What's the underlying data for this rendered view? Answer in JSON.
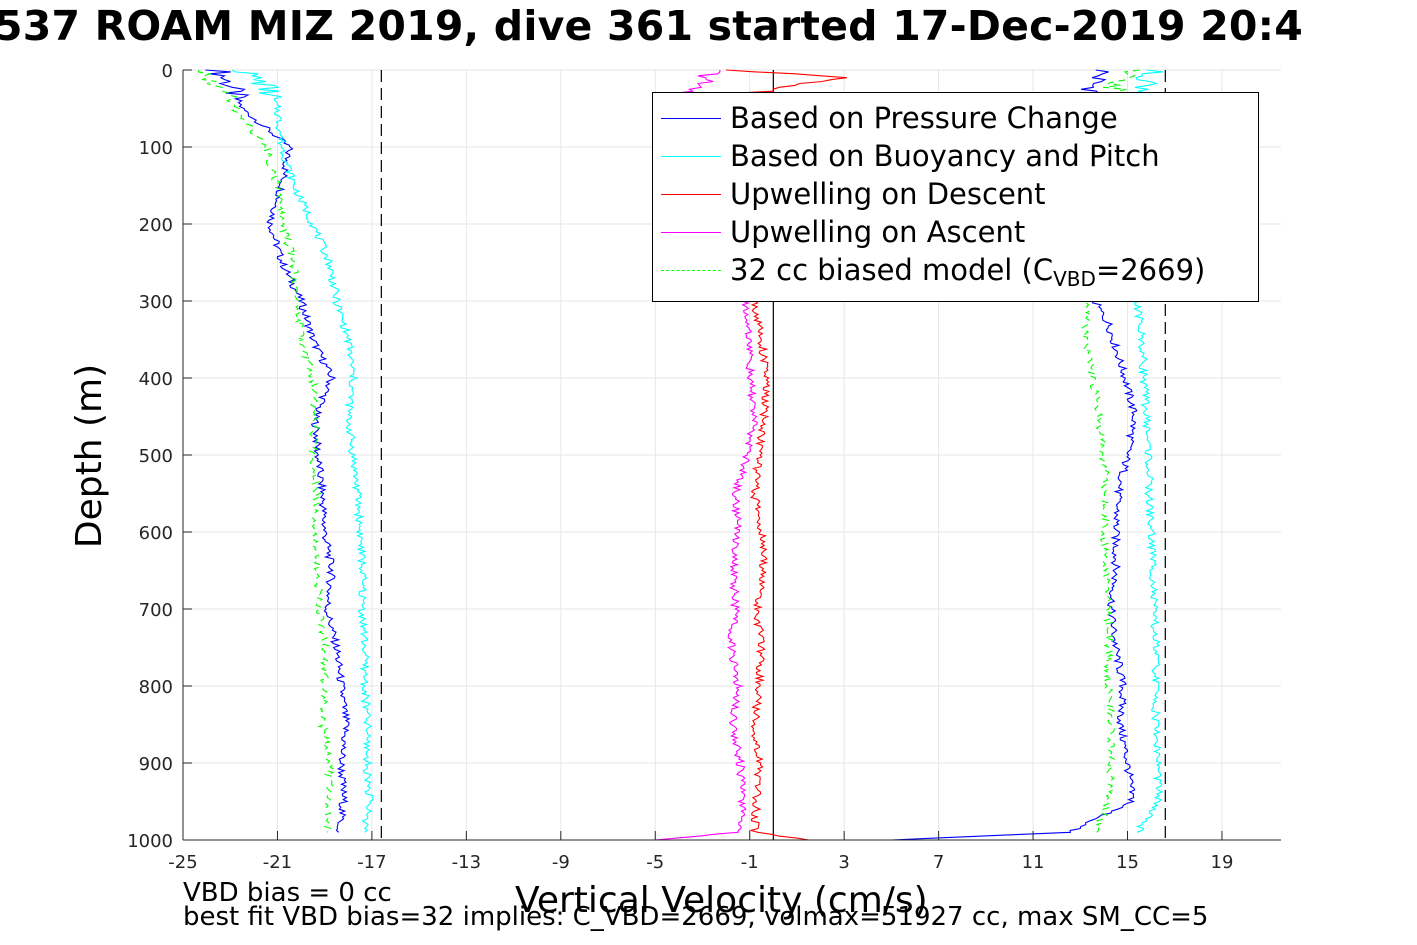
{
  "title": "537 ROAM MIZ 2019, dive 361 started 17-Dec-2019 20:4",
  "notes": {
    "vbd_bias": "VBD bias = 0 cc",
    "best_fit": "best fit VBD bias=32 implies: C_VBD=2669, volmax=51927 cc, max SM_CC=5"
  },
  "chart_data": {
    "type": "line",
    "title": "537 ROAM MIZ 2019, dive 361 started 17-Dec-2019 20:4",
    "xlabel": "Vertical Velocity (cm/s)",
    "ylabel": "Depth (m)",
    "xlim": [
      -25,
      21.5
    ],
    "ylim": [
      0,
      1000
    ],
    "y_reversed": true,
    "grid": true,
    "legend_position": "top-right",
    "x_ticks": [
      "-25",
      "-21",
      "-17",
      "-13",
      "-9",
      "-5",
      "-1",
      "3",
      "7",
      "11",
      "15",
      "19"
    ],
    "x_tick_values": [
      -25,
      -21,
      -17,
      -13,
      -9,
      -5,
      -1,
      3,
      7,
      11,
      15,
      19
    ],
    "y_ticks": [
      "0",
      "100",
      "200",
      "300",
      "400",
      "500",
      "600",
      "700",
      "800",
      "900",
      "1000"
    ],
    "y_tick_values": [
      0,
      100,
      200,
      300,
      400,
      500,
      600,
      700,
      800,
      900,
      1000
    ],
    "reference_lines": [
      {
        "x": -16.6,
        "style": "dashed",
        "color": "#000000"
      },
      {
        "x": 16.6,
        "style": "dashed",
        "color": "#000000"
      },
      {
        "x": 0,
        "style": "solid",
        "color": "#000000"
      }
    ],
    "series": [
      {
        "name": "Based on Pressure Change",
        "color": "#0000ff",
        "dash": "",
        "segments": [
          {
            "depth": [
              0,
              20,
              50,
              100,
              150,
              200,
              250,
              300,
              350,
              400,
              450,
              500,
              550,
              600,
              650,
              700,
              750,
              800,
              850,
              900,
              950,
              990
            ],
            "x": [
              -23.5,
              -23,
              -22.5,
              -20.5,
              -20.8,
              -21.3,
              -20.8,
              -20,
              -19.5,
              -18.7,
              -19.4,
              -19.3,
              -19.1,
              -19,
              -18.7,
              -18.9,
              -18.5,
              -18.3,
              -18.1,
              -18.3,
              -18.2,
              -18.4
            ]
          },
          {
            "depth": [
              0,
              20,
              60,
              120,
              200,
              300,
              330,
              360,
              400,
              450,
              500,
              550,
              600,
              650,
              700,
              750,
              800,
              850,
              900,
              950,
              990,
              1000
            ],
            "x": [
              14,
              13.5,
              14,
              14,
              13.8,
              13.6,
              14.2,
              14.5,
              14.9,
              15.3,
              15,
              14.6,
              14.5,
              14.5,
              14.3,
              14.5,
              14.8,
              14.7,
              15,
              15.2,
              12.5,
              5
            ]
          }
        ]
      },
      {
        "name": "Based on Buoyancy and Pitch",
        "color": "#00ffff",
        "dash": "",
        "segments": [
          {
            "depth": [
              0,
              20,
              50,
              100,
              150,
              200,
              250,
              300,
              350,
              400,
              450,
              500,
              550,
              600,
              650,
              700,
              750,
              800,
              850,
              900,
              950,
              990
            ],
            "x": [
              -22.5,
              -21.5,
              -21,
              -20.8,
              -20.3,
              -19.5,
              -18.8,
              -18.5,
              -18,
              -17.8,
              -18,
              -17.8,
              -17.6,
              -17.5,
              -17.4,
              -17.4,
              -17.3,
              -17.3,
              -17.2,
              -17.2,
              -17.1,
              -17.3
            ]
          },
          {
            "depth": [
              0,
              20,
              60,
              120,
              200,
              300,
              350,
              400,
              450,
              500,
              550,
              600,
              650,
              700,
              750,
              800,
              850,
              900,
              950,
              990
            ],
            "x": [
              16,
              15.8,
              15.5,
              15.4,
              15.3,
              15.4,
              15.6,
              15.7,
              15.8,
              15.9,
              15.9,
              16,
              16.1,
              16.1,
              16.2,
              16.2,
              16.2,
              16.3,
              16.3,
              15.4
            ]
          }
        ]
      },
      {
        "name": "Upwelling on Descent",
        "color": "#ff0000",
        "dash": "",
        "segments": [
          {
            "depth": [
              0,
              10,
              30,
              60,
              100,
              200,
              300,
              350,
              400,
              450,
              500,
              550,
              600,
              650,
              700,
              750,
              800,
              850,
              900,
              950,
              990,
              1000
            ],
            "x": [
              -2,
              3,
              -1,
              -3,
              -2,
              -1.2,
              -0.8,
              -0.5,
              -0.3,
              -0.4,
              -0.6,
              -0.8,
              -0.5,
              -0.4,
              -0.7,
              -0.5,
              -0.6,
              -0.8,
              -0.6,
              -0.7,
              -0.8,
              1.5
            ]
          }
        ]
      },
      {
        "name": "Upwelling on Ascent",
        "color": "#ff00ff",
        "dash": "",
        "segments": [
          {
            "depth": [
              0,
              15,
              40,
              60,
              100,
              200,
              300,
              350,
              400,
              450,
              500,
              550,
              600,
              650,
              700,
              750,
              800,
              850,
              900,
              950,
              990,
              1000
            ],
            "x": [
              -2.5,
              -3,
              -4,
              -5,
              -3,
              -1.5,
              -1.2,
              -1,
              -1,
              -0.8,
              -1.1,
              -1.6,
              -1.5,
              -1.7,
              -1.6,
              -1.8,
              -1.5,
              -1.7,
              -1.4,
              -1.3,
              -1.4,
              -5
            ]
          }
        ]
      },
      {
        "name": "32 cc biased model (C_VBD=2669)",
        "color": "#00ff00",
        "dash": "7 5",
        "segments": [
          {
            "depth": [
              0,
              20,
              50,
              100,
              150,
              200,
              250,
              300,
              350,
              400,
              450,
              500,
              550,
              600,
              650,
              700,
              750,
              800,
              850,
              900,
              950,
              990
            ],
            "x": [
              -24.5,
              -23.5,
              -22.8,
              -21.5,
              -21,
              -20.8,
              -20.3,
              -20.2,
              -20,
              -19.5,
              -19.4,
              -19.5,
              -19.3,
              -19.4,
              -19.3,
              -19.2,
              -19,
              -19,
              -19.1,
              -18.8,
              -18.8,
              -18.9
            ]
          },
          {
            "depth": [
              0,
              20,
              60,
              120,
              200,
              300,
              350,
              400,
              450,
              500,
              550,
              600,
              650,
              700,
              750,
              800,
              850,
              900,
              950,
              990
            ],
            "x": [
              15,
              14.5,
              13.8,
              13.7,
              13.5,
              13.4,
              13.2,
              13.5,
              13.8,
              14,
              14.1,
              14,
              14.1,
              14.2,
              14.2,
              14.2,
              14.3,
              14.3,
              14.2,
              13.7
            ]
          }
        ]
      }
    ]
  },
  "legend": {
    "items": [
      {
        "label": "Based on Pressure Change",
        "color": "#0000ff",
        "dashed": false
      },
      {
        "label": "Based on Buoyancy and Pitch",
        "color": "#00ffff",
        "dashed": false
      },
      {
        "label": "Upwelling on Descent",
        "color": "#ff0000",
        "dashed": false
      },
      {
        "label": "Upwelling on Ascent",
        "color": "#ff00ff",
        "dashed": false
      },
      {
        "label_pre": "32 cc biased model (C",
        "label_sub": "VBD",
        "label_post": "=2669)",
        "color": "#00ff00",
        "dashed": true
      }
    ]
  }
}
